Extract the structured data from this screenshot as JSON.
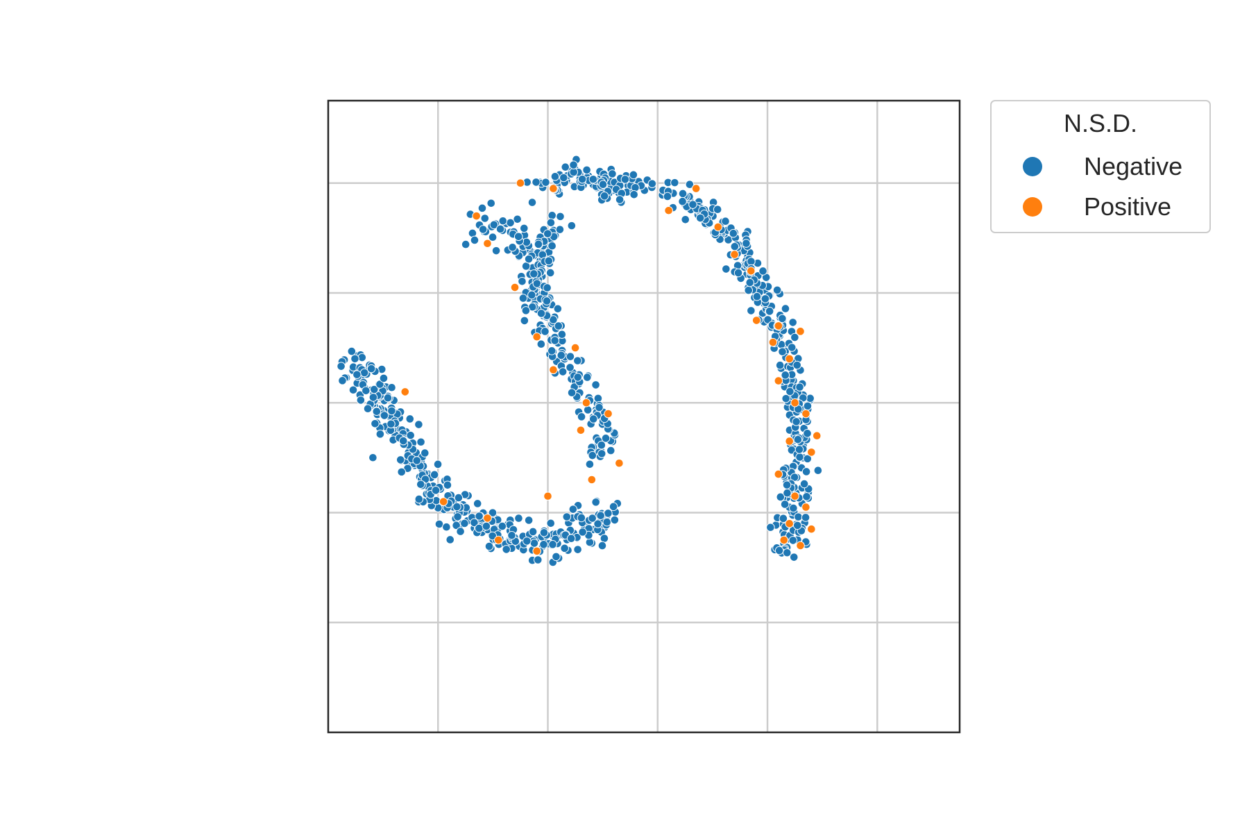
{
  "chart_data": {
    "type": "scatter",
    "title": "",
    "xlabel": "",
    "ylabel": "",
    "xlim": [
      -1,
      4.75
    ],
    "ylim": [
      -3,
      2.75
    ],
    "grid": true,
    "tick_labels_shown": false,
    "legend": {
      "title": "N.S.D.",
      "placement": "outside-top-right",
      "entries": [
        {
          "label": "Negative",
          "color": "#1f77b4"
        },
        {
          "label": "Positive",
          "color": "#ff7f0e"
        }
      ]
    },
    "series": [
      {
        "name": "Negative",
        "color": "#1f77b4",
        "segments": [
          {
            "path": [
              [
                -0.8,
                0.4
              ],
              [
                -0.55,
                0.08
              ],
              [
                -0.3,
                -0.38
              ],
              [
                0.05,
                -0.9
              ],
              [
                0.5,
                -1.2
              ],
              [
                1.0,
                -1.3
              ],
              [
                1.4,
                -1.1
              ],
              [
                1.6,
                -0.95
              ]
            ],
            "count": 370,
            "spread": 0.085
          },
          {
            "path": [
              [
                1.35,
                -0.55
              ],
              [
                1.55,
                -0.45
              ],
              [
                1.6,
                -0.25
              ],
              [
                1.45,
                -0.12
              ],
              [
                1.35,
                0.08
              ],
              [
                1.2,
                0.3
              ],
              [
                1.05,
                0.55
              ],
              [
                0.95,
                0.85
              ],
              [
                0.88,
                1.08
              ],
              [
                0.95,
                1.4
              ],
              [
                1.1,
                1.7
              ]
            ],
            "count": 165,
            "spread": 0.06
          },
          {
            "path": [
              [
                0.35,
                1.65
              ],
              [
                0.65,
                1.55
              ],
              [
                0.85,
                1.4
              ],
              [
                0.95,
                1.1
              ],
              [
                0.88,
                0.85
              ]
            ],
            "count": 80,
            "spread": 0.085
          },
          {
            "path": [
              [
                0.95,
                1.95
              ],
              [
                1.25,
                2.05
              ],
              [
                1.45,
                2.0
              ],
              [
                1.6,
                1.95
              ],
              [
                1.8,
                1.95
              ]
            ],
            "count": 105,
            "spread": 0.07
          },
          {
            "path": [
              [
                2.05,
                1.95
              ],
              [
                2.4,
                1.78
              ],
              [
                2.7,
                1.45
              ],
              [
                2.9,
                1.1
              ],
              [
                3.1,
                0.7
              ],
              [
                3.2,
                0.3
              ],
              [
                3.3,
                -0.2
              ],
              [
                3.25,
                -0.7
              ],
              [
                3.25,
                -1.05
              ]
            ],
            "count": 300,
            "spread": 0.07
          },
          {
            "path": [
              [
                3.15,
                -0.6
              ],
              [
                3.2,
                -0.95
              ],
              [
                3.3,
                -1.2
              ],
              [
                3.2,
                -1.35
              ],
              [
                3.1,
                -1.05
              ]
            ],
            "count": 50,
            "spread": 0.05
          }
        ]
      },
      {
        "name": "Positive",
        "color": "#ff7f0e",
        "points": [
          [
            0.35,
            1.7
          ],
          [
            0.45,
            1.45
          ],
          [
            0.7,
            1.05
          ],
          [
            0.9,
            0.6
          ],
          [
            1.05,
            0.3
          ],
          [
            1.25,
            0.5
          ],
          [
            1.35,
            0.0
          ],
          [
            1.55,
            -0.1
          ],
          [
            1.3,
            -0.25
          ],
          [
            1.65,
            -0.55
          ],
          [
            1.4,
            -0.7
          ],
          [
            1.0,
            -0.85
          ],
          [
            0.45,
            -1.05
          ],
          [
            0.55,
            -1.25
          ],
          [
            0.9,
            -1.35
          ],
          [
            0.05,
            -0.9
          ],
          [
            -0.3,
            0.1
          ],
          [
            0.75,
            2.0
          ],
          [
            1.05,
            1.95
          ],
          [
            2.35,
            1.95
          ],
          [
            2.1,
            1.75
          ],
          [
            2.55,
            1.6
          ],
          [
            2.7,
            1.35
          ],
          [
            2.85,
            1.2
          ],
          [
            3.1,
            0.7
          ],
          [
            2.9,
            0.75
          ],
          [
            3.05,
            0.55
          ],
          [
            3.2,
            0.4
          ],
          [
            3.1,
            0.2
          ],
          [
            3.25,
            0.0
          ],
          [
            3.35,
            -0.1
          ],
          [
            3.45,
            -0.3
          ],
          [
            3.2,
            -0.35
          ],
          [
            3.1,
            -0.65
          ],
          [
            3.25,
            -0.85
          ],
          [
            3.35,
            -0.95
          ],
          [
            3.2,
            -1.1
          ],
          [
            3.4,
            -1.15
          ],
          [
            3.15,
            -1.25
          ],
          [
            3.3,
            -1.3
          ],
          [
            3.4,
            -0.45
          ],
          [
            3.3,
            0.65
          ]
        ]
      }
    ]
  }
}
